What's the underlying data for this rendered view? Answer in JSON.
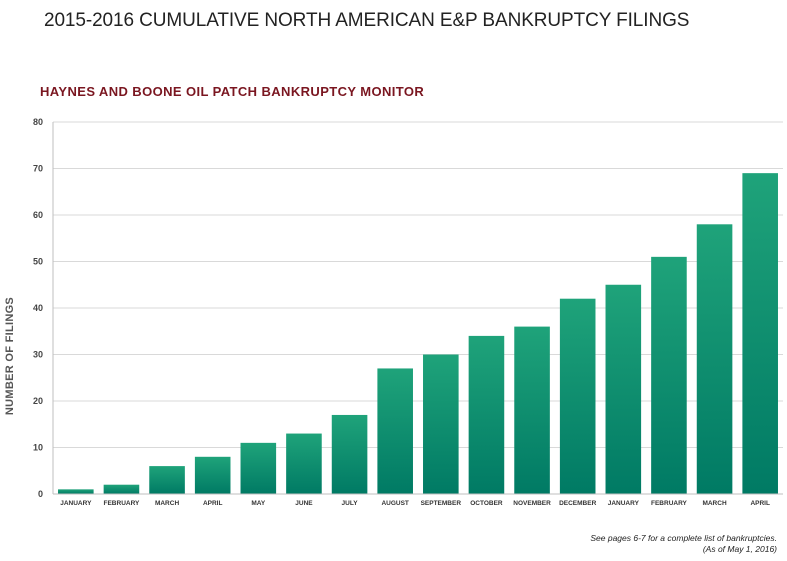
{
  "chart_data": {
    "type": "bar",
    "title": "2015-2016 CUMULATIVE NORTH AMERICAN E&P BANKRUPTCY FILINGS",
    "subtitle": "HAYNES AND BOONE OIL PATCH BANKRUPTCY MONITOR",
    "xlabel": "",
    "ylabel": "NUMBER OF FILINGS",
    "categories": [
      "JANUARY",
      "FEBRUARY",
      "MARCH",
      "APRIL",
      "MAY",
      "JUNE",
      "JULY",
      "AUGUST",
      "SEPTEMBER",
      "OCTOBER",
      "NOVEMBER",
      "DECEMBER",
      "JANUARY",
      "FEBRUARY",
      "MARCH",
      "APRIL"
    ],
    "values": [
      1,
      2,
      6,
      8,
      11,
      13,
      17,
      27,
      30,
      34,
      36,
      42,
      45,
      51,
      58,
      69
    ],
    "ylim": [
      0,
      80
    ],
    "yticks": [
      0,
      10,
      20,
      30,
      40,
      50,
      60,
      70,
      80
    ],
    "grid": true,
    "legend": "none",
    "colors": {
      "bar_top": "#1fa37a",
      "bar_bottom": "#007a64",
      "grid": "#d9d9d9"
    }
  },
  "footnote": {
    "line1": "See pages 6-7 for a complete list of bankruptcies.",
    "line2": "(As of May 1, 2016)"
  }
}
